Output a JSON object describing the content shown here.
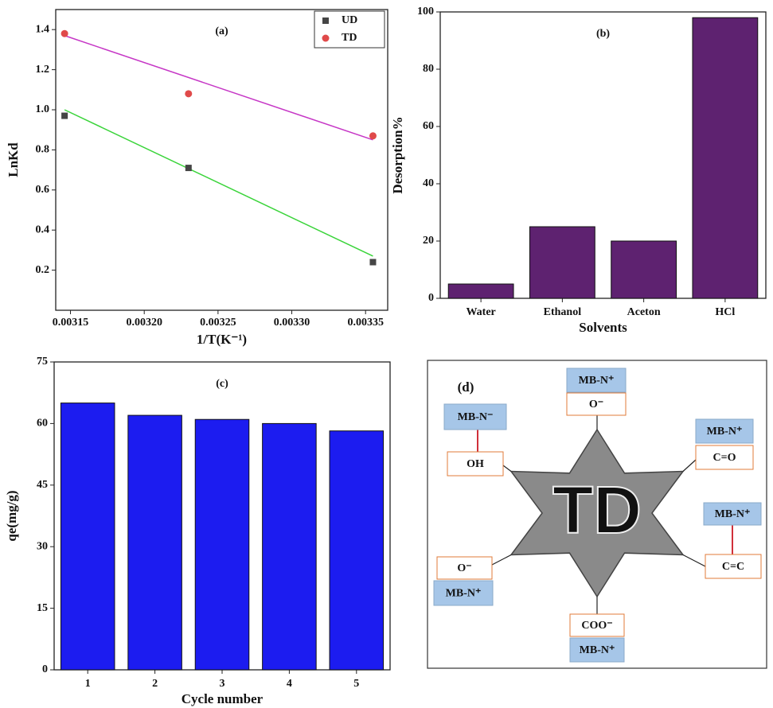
{
  "chart_data": [
    {
      "type": "scatter",
      "annotation": "(a)",
      "x_label": "1/T(K⁻¹)",
      "y_label": "LnKd",
      "xlim": [
        0.00314,
        0.003365
      ],
      "xticks": [
        0.00315,
        {
          "value": 0.0032,
          "label": "0.00320"
        },
        0.00325,
        {
          "value": 0.0033,
          "label": "0.00330"
        },
        0.00335
      ],
      "ylim": [
        0.0,
        1.5
      ],
      "yticks": [
        0.2,
        0.4,
        0.6,
        0.8,
        {
          "value": 1.0,
          "label": "1.0"
        },
        1.2,
        1.4
      ],
      "legend": "top-right",
      "series": [
        {
          "name": "UD",
          "color": "#454545",
          "marker": "square",
          "x": [
            0.003146,
            0.00323,
            0.003355
          ],
          "values": [
            0.97,
            0.71,
            0.24
          ]
        },
        {
          "name": "TD",
          "color": "#e04a4a",
          "marker": "circle",
          "x": [
            0.003146,
            0.00323,
            0.003355
          ],
          "values": [
            1.38,
            1.08,
            0.87
          ]
        }
      ],
      "fits": [
        {
          "color": "#3ad43a",
          "x": [
            0.003146,
            0.003355
          ],
          "values": [
            1.0,
            0.27
          ]
        },
        {
          "color": "#c637c6",
          "x": [
            0.003146,
            0.003355
          ],
          "values": [
            1.37,
            0.85
          ]
        }
      ]
    },
    {
      "type": "bar",
      "annotation": "(b)",
      "x_label": "Solvents",
      "y_label": "Desorption%",
      "categories": [
        "Water",
        "Ethanol",
        "Aceton",
        "HCl"
      ],
      "values": [
        5,
        25,
        20,
        98
      ],
      "color": "#5e2270",
      "ylim": [
        0,
        100
      ],
      "yticks": [
        0,
        20,
        40,
        60,
        80,
        100
      ]
    },
    {
      "type": "bar",
      "annotation": "(c)",
      "x_label": "Cycle number",
      "y_label": "qe(mg/g)",
      "categories": [
        "1",
        "2",
        "3",
        "4",
        "5"
      ],
      "values": [
        65,
        62,
        61,
        60,
        58.2
      ],
      "color": "#1c1cf0",
      "ylim": [
        0,
        75
      ],
      "yticks": [
        0,
        15,
        30,
        45,
        60,
        75
      ]
    }
  ],
  "diagram": {
    "label": "(d)",
    "center": "TD",
    "groups": [
      {
        "ion": "MB-N⁺",
        "site": "O⁻"
      },
      {
        "ion": "MB-N⁻",
        "site": "OH"
      },
      {
        "ion": "MB-N⁺",
        "site": "C=O"
      },
      {
        "ion": "MB-N⁺",
        "site": "C=C"
      },
      {
        "ion": "MB-N⁺",
        "site": "O⁻"
      },
      {
        "ion": "MB-N⁺",
        "site": "COO⁻"
      }
    ]
  }
}
